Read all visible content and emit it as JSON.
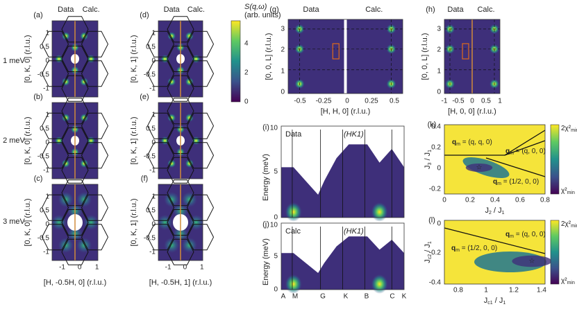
{
  "row_labels": [
    "1 meV",
    "2 meV",
    "3 meV"
  ],
  "hk0": {
    "headers": [
      "Data",
      "Calc."
    ],
    "panel_labels": [
      "(a)",
      "(b)",
      "(c)"
    ],
    "yticks": [
      "1",
      "0.5",
      "0",
      "-0.5",
      "-1"
    ],
    "xticks": [
      "-1",
      "0",
      "1"
    ],
    "ylabel": "[0, K, 0] (r.l.u.)",
    "xlabel": "[H, -0.5H, 0] (r.l.u.)"
  },
  "hk1": {
    "headers": [
      "Data",
      "Calc."
    ],
    "panel_labels": [
      "(d)",
      "(e)",
      "(f)"
    ],
    "yticks": [
      "1",
      "0.5",
      "0",
      "-0.5",
      "-1"
    ],
    "xticks": [
      "-1",
      "0",
      "1"
    ],
    "ylabel": "[0, K, 1] (r.l.u.)",
    "xlabel": "[H, -0.5H, 1] (r.l.u.)"
  },
  "colorbar": {
    "title": "S(q,ω)",
    "units": "(arb. units)",
    "ticks": [
      "0",
      "2",
      "4"
    ]
  },
  "hhl": {
    "panel_label": "(g)",
    "headers": [
      "Data",
      "Calc."
    ],
    "yticks": [
      "0",
      "1",
      "2",
      "3"
    ],
    "xticks": [
      "-0.5",
      "-0.25",
      "0",
      "0.25",
      "0.5"
    ],
    "ylabel": "[0, 0, L] (r.l.u.)",
    "xlabel": "[H, H, 0] (r.l.u.)"
  },
  "h0l": {
    "panel_label": "(h)",
    "headers": [
      "Data",
      "Calc."
    ],
    "yticks": [
      "0",
      "1",
      "2",
      "3"
    ],
    "xticks": [
      "-1",
      "-0.5",
      "0",
      "0.5",
      "1"
    ],
    "ylabel": "[0, 0, L] (r.l.u.)",
    "xlabel": "[H, 0, 0] (r.l.u.)"
  },
  "disp_data": {
    "panel_label": "(i)",
    "texts": [
      "Data",
      "(HK1)"
    ],
    "yticks": [
      "0",
      "5",
      "10"
    ],
    "ylabel": "Energy (meV)"
  },
  "disp_calc": {
    "panel_label": "(j)",
    "texts": [
      "Calc",
      "(HK1)"
    ],
    "yticks": [
      "0",
      "5",
      "10"
    ],
    "ylabel": "Energy (meV)",
    "xticks": [
      "A",
      "M",
      "G",
      "K",
      "B",
      "C",
      "K"
    ]
  },
  "phase_j3": {
    "panel_label": "(k)",
    "ylabel": [
      "J",
      "3",
      " / J",
      "1"
    ],
    "xlabel": [
      "J",
      "2",
      " / J",
      "1"
    ],
    "yticks": [
      "0.4",
      "0.2",
      "0",
      "-0.2"
    ],
    "xticks": [
      "0",
      "0.2",
      "0.4",
      "0.6",
      "0.8"
    ],
    "regions": [
      [
        "q",
        "m",
        " = (q, q, 0)"
      ],
      [
        "q",
        "m",
        " = (q, 0, 0)"
      ],
      [
        "q",
        "m",
        " = (1/2, 0, 0)"
      ]
    ],
    "cbar_top": [
      "2χ²",
      "min"
    ],
    "cbar_bottom": [
      "χ²",
      "min"
    ]
  },
  "phase_jc": {
    "panel_label": "(l)",
    "ylabel": [
      "J",
      "c2",
      " / J",
      "1"
    ],
    "xlabel": [
      "J",
      "c1",
      " / J",
      "1"
    ],
    "yticks": [
      "0",
      "-0.2",
      "-0.4"
    ],
    "xticks": [
      "0.8",
      "1",
      "1.2",
      "1.4"
    ],
    "regions": [
      [
        "q",
        "m",
        " = (q, 0, 0)"
      ],
      [
        "q",
        "m",
        " = (1/2, 0, 0)"
      ]
    ],
    "cbar_top": [
      "2χ²",
      "min"
    ],
    "cbar_bottom": [
      "χ²",
      "min"
    ]
  }
}
